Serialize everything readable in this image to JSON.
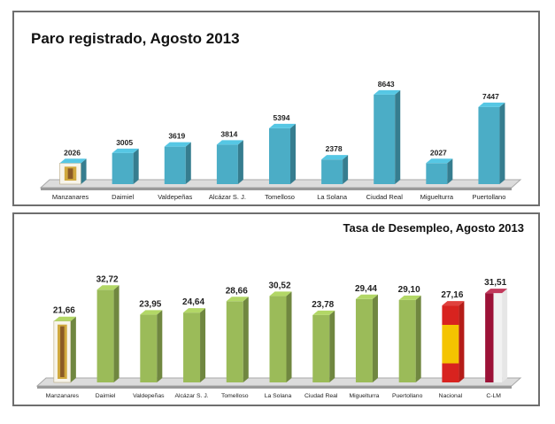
{
  "chart_data": [
    {
      "type": "bar",
      "title": "Paro registrado, Agosto 2013",
      "categories": [
        "Manzanares",
        "Daimiel",
        "Valdepeñas",
        "Alcázar S. J.",
        "Tomelloso",
        "La Solana",
        "Ciudad Real",
        "Miguelturra",
        "Puertollano"
      ],
      "values": [
        2026,
        3005,
        3619,
        3814,
        5394,
        2378,
        8643,
        2027,
        7447
      ],
      "value_labels": [
        "2026",
        "3005",
        "3619",
        "3814",
        "5394",
        "2378",
        "8643",
        "2027",
        "7447"
      ],
      "ylim": [
        0,
        10000
      ],
      "bar_color": "#4badc6",
      "grid": false,
      "legend": "none"
    },
    {
      "type": "bar",
      "title": "Tasa de Desempleo, Agosto 2013",
      "categories": [
        "Manzanares",
        "Daimiel",
        "Valdepeñas",
        "Alcázar S. J.",
        "Tomelloso",
        "La Solana",
        "Ciudad Real",
        "Miguelturra",
        "Puertollano",
        "Nacional",
        "C-LM"
      ],
      "values": [
        21.66,
        32.72,
        23.95,
        24.64,
        28.66,
        30.52,
        23.78,
        29.44,
        29.1,
        27.16,
        31.51
      ],
      "value_labels": [
        "21,66",
        "32,72",
        "23,95",
        "24,64",
        "28,66",
        "30,52",
        "23,78",
        "29,44",
        "29,10",
        "27,16",
        "31,51"
      ],
      "ylim": [
        0,
        40
      ],
      "bar_color": "#9bbb59",
      "special_bar_colors": {
        "Nacional": "flag-spain",
        "C-LM": "flag-clm"
      },
      "grid": false,
      "legend": "none"
    }
  ]
}
